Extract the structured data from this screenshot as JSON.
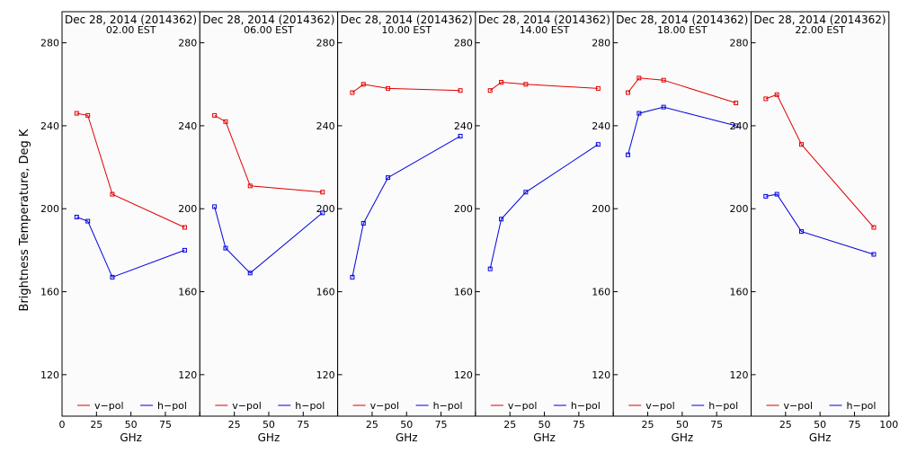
{
  "chart_data": {
    "type": "line",
    "ylabel": "Brightness Temperature, Deg K",
    "xlabel": "GHz",
    "xlim": [
      0,
      100
    ],
    "ylim": [
      100,
      295
    ],
    "xticks": [
      0,
      25,
      50,
      75,
      100
    ],
    "yticks": [
      120,
      160,
      200,
      240,
      280
    ],
    "x": [
      10.65,
      18.7,
      36.5,
      89.0
    ],
    "legend": [
      "v−pol",
      "h−pol"
    ],
    "colors": {
      "v-pol": "#e00000",
      "h-pol": "#0000e0"
    },
    "panels": [
      {
        "date": "Dec 28, 2014 (2014362)",
        "time": "02.00 EST",
        "series": [
          {
            "name": "v−pol",
            "values": [
              246,
              245,
              207,
              191
            ]
          },
          {
            "name": "h−pol",
            "values": [
              196,
              194,
              167,
              180
            ]
          }
        ]
      },
      {
        "date": "Dec 28, 2014 (2014362)",
        "time": "06.00 EST",
        "series": [
          {
            "name": "v−pol",
            "values": [
              245,
              242,
              211,
              208
            ]
          },
          {
            "name": "h−pol",
            "values": [
              201,
              181,
              169,
              198
            ]
          }
        ]
      },
      {
        "date": "Dec 28, 2014 (2014362)",
        "time": "10.00 EST",
        "series": [
          {
            "name": "v−pol",
            "values": [
              256,
              260,
              258,
              257
            ]
          },
          {
            "name": "h−pol",
            "values": [
              167,
              193,
              215,
              235
            ]
          }
        ]
      },
      {
        "date": "Dec 28, 2014 (2014362)",
        "time": "14.00 EST",
        "series": [
          {
            "name": "v−pol",
            "values": [
              257,
              261,
              260,
              258
            ]
          },
          {
            "name": "h−pol",
            "values": [
              171,
              195,
              208,
              231
            ]
          }
        ]
      },
      {
        "date": "Dec 28, 2014 (2014362)",
        "time": "18.00 EST",
        "series": [
          {
            "name": "v−pol",
            "values": [
              256,
              263,
              262,
              251
            ]
          },
          {
            "name": "h−pol",
            "values": [
              226,
              246,
              249,
              240
            ]
          }
        ]
      },
      {
        "date": "Dec 28, 2014 (2014362)",
        "time": "22.00 EST",
        "series": [
          {
            "name": "v−pol",
            "values": [
              253,
              255,
              231,
              191
            ]
          },
          {
            "name": "h−pol",
            "values": [
              206,
              207,
              189,
              178
            ]
          }
        ]
      }
    ]
  }
}
